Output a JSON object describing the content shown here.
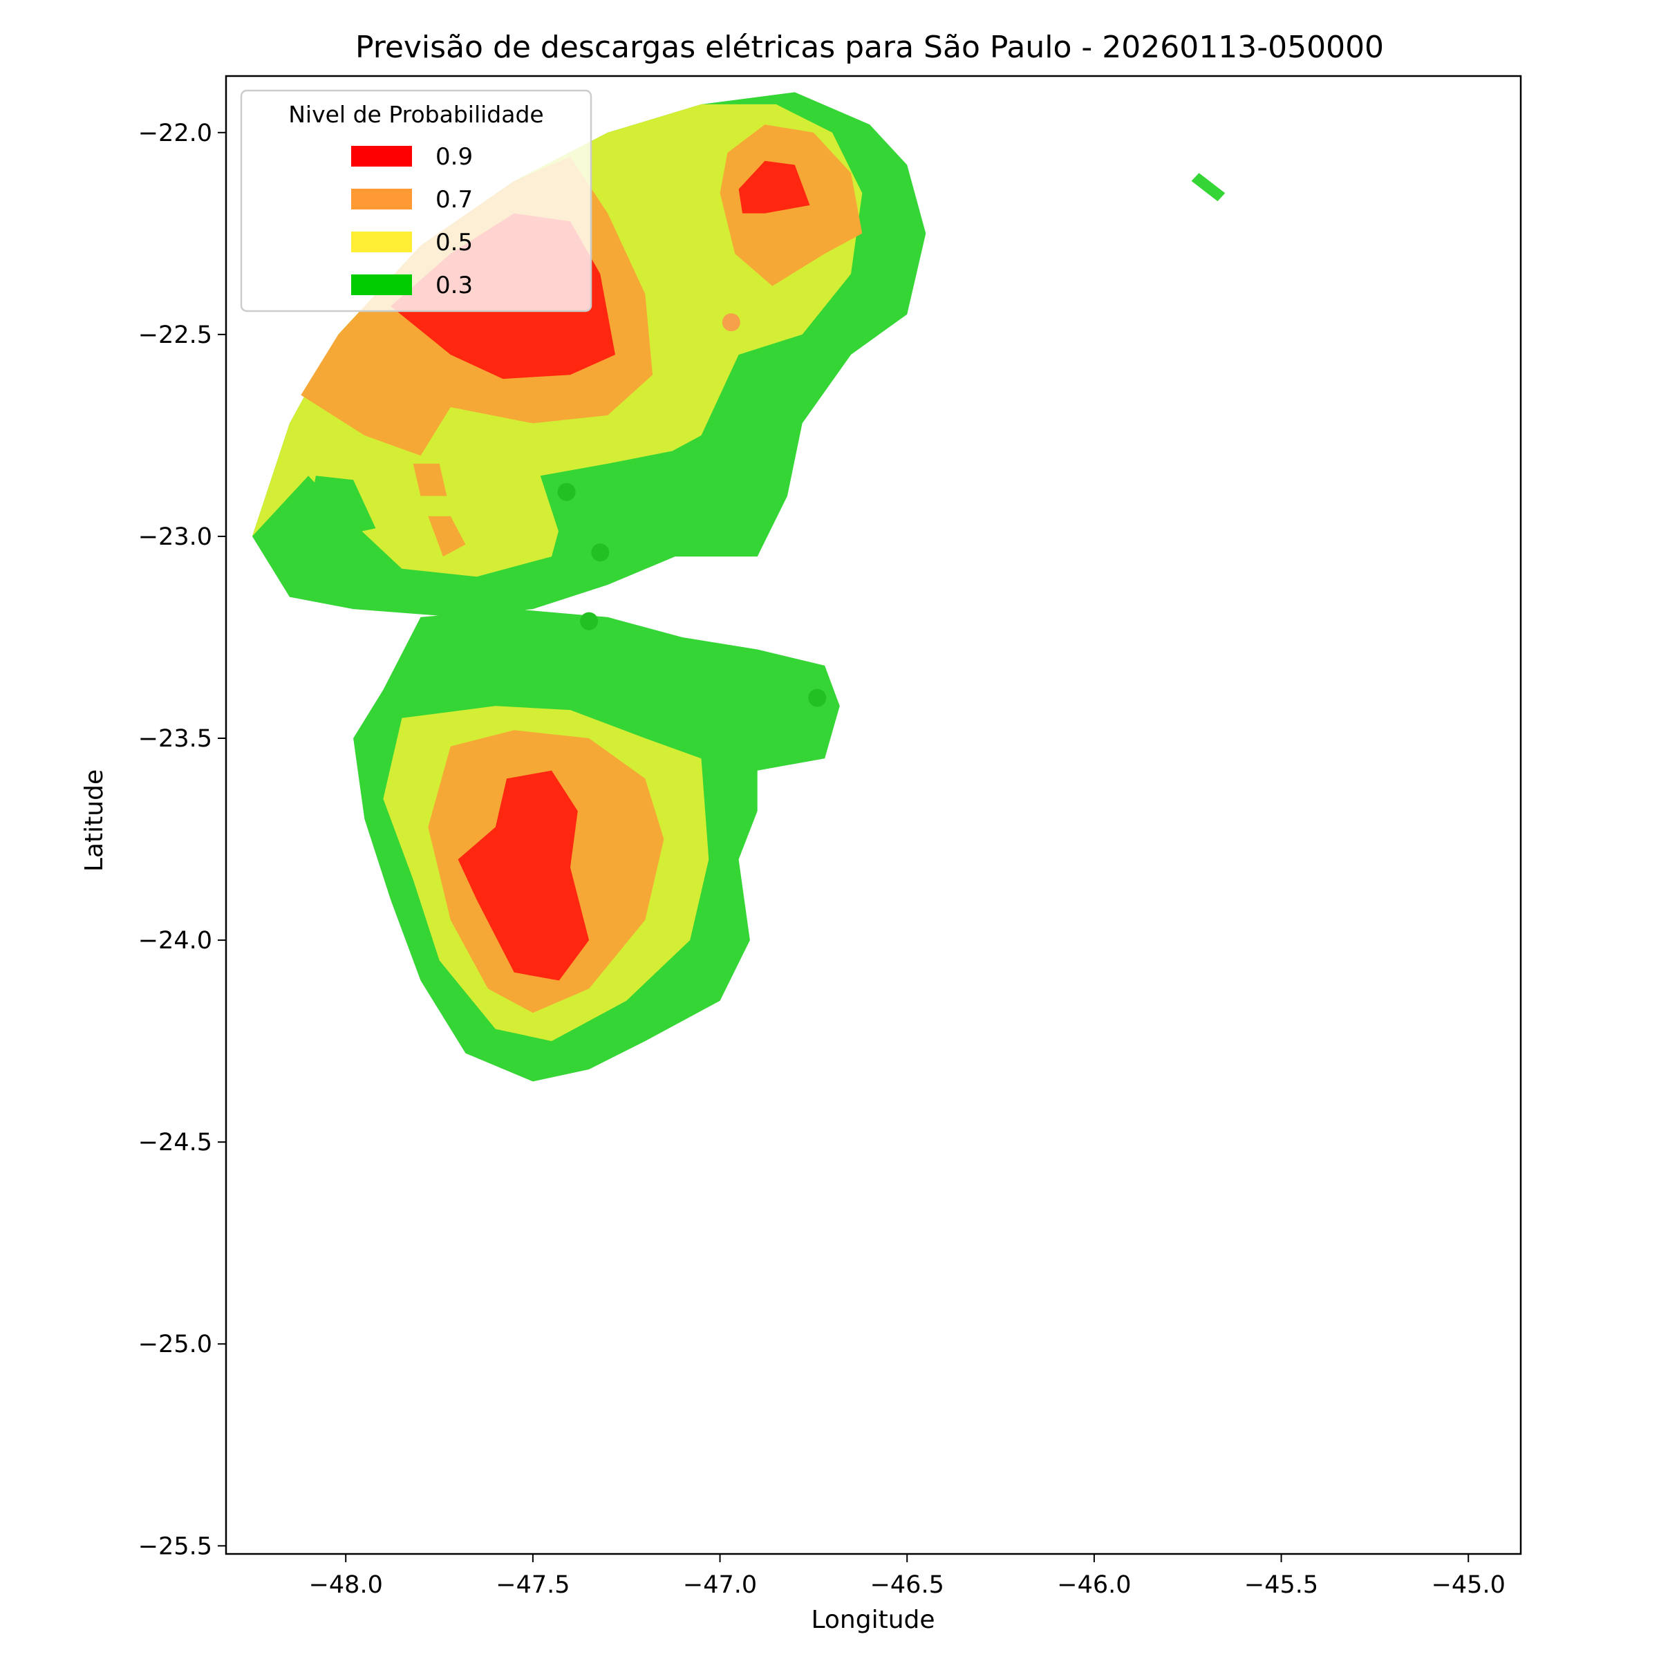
{
  "figure": {
    "title": "Previsão de descargas elétricas para São Paulo - 20260113-050000",
    "xlabel": "Longitude",
    "ylabel": "Latitude"
  },
  "axes": {
    "xlim": [
      -48.32,
      -44.86
    ],
    "ylim": [
      -25.52,
      -21.86
    ],
    "xticks": [
      -48.0,
      -47.5,
      -47.0,
      -46.5,
      -46.0,
      -45.5,
      -45.0
    ],
    "xtick_labels": [
      "−48.0",
      "−47.5",
      "−47.0",
      "−46.5",
      "−46.0",
      "−45.5",
      "−45.0"
    ],
    "yticks": [
      -22.0,
      -22.5,
      -23.0,
      -23.5,
      -24.0,
      -24.5,
      -25.0,
      -25.5
    ],
    "ytick_labels": [
      "−22.0",
      "−22.5",
      "−23.0",
      "−23.5",
      "−24.0",
      "−24.5",
      "−25.0",
      "−25.5"
    ]
  },
  "legend": {
    "title": "Nivel de Probabilidade",
    "position": "upper-left",
    "entries": [
      {
        "label": "0.9",
        "color": "#ff0000"
      },
      {
        "label": "0.7",
        "color": "#ff9933"
      },
      {
        "label": "0.5",
        "color": "#ffee33"
      },
      {
        "label": "0.3",
        "color": "#00cc00"
      }
    ]
  },
  "map_data": {
    "colors": {
      "0.3": "#36d536",
      "0.5": "#d4ee36",
      "0.7": "#f6a836",
      "0.9": "#ff2710",
      "marker_green": "#22c022",
      "marker_orange": "#f6a04a"
    },
    "regions": [
      {
        "name": "north-cell-03",
        "level": "0.3",
        "points": [
          [
            -48.25,
            -23.0
          ],
          [
            -48.15,
            -22.72
          ],
          [
            -48.02,
            -22.5
          ],
          [
            -47.8,
            -22.28
          ],
          [
            -47.55,
            -22.12
          ],
          [
            -47.3,
            -22.0
          ],
          [
            -47.05,
            -21.93
          ],
          [
            -46.8,
            -21.9
          ],
          [
            -46.6,
            -21.98
          ],
          [
            -46.5,
            -22.08
          ],
          [
            -46.45,
            -22.25
          ],
          [
            -46.5,
            -22.45
          ],
          [
            -46.65,
            -22.55
          ],
          [
            -46.78,
            -22.72
          ],
          [
            -46.82,
            -22.9
          ],
          [
            -46.9,
            -23.05
          ],
          [
            -47.12,
            -23.05
          ],
          [
            -47.3,
            -23.12
          ],
          [
            -47.5,
            -23.18
          ],
          [
            -47.7,
            -23.2
          ],
          [
            -47.98,
            -23.18
          ],
          [
            -48.15,
            -23.15
          ]
        ]
      },
      {
        "name": "north-cell-05",
        "level": "0.5",
        "points": [
          [
            -48.25,
            -23.0
          ],
          [
            -48.15,
            -22.72
          ],
          [
            -48.02,
            -22.5
          ],
          [
            -47.8,
            -22.28
          ],
          [
            -47.55,
            -22.12
          ],
          [
            -47.3,
            -22.0
          ],
          [
            -47.05,
            -21.93
          ],
          [
            -46.85,
            -21.93
          ],
          [
            -46.7,
            -22.0
          ],
          [
            -46.62,
            -22.15
          ],
          [
            -46.65,
            -22.35
          ],
          [
            -46.78,
            -22.5
          ],
          [
            -46.95,
            -22.55
          ],
          [
            -47.05,
            -22.75
          ],
          [
            -47.25,
            -22.85
          ],
          [
            -47.4,
            -22.88
          ],
          [
            -47.45,
            -23.05
          ],
          [
            -47.65,
            -23.1
          ],
          [
            -47.85,
            -23.08
          ],
          [
            -48.0,
            -22.95
          ],
          [
            -48.1,
            -22.85
          ]
        ]
      },
      {
        "name": "north-cell-05-gap-a",
        "level": "0.3",
        "points": [
          [
            -48.08,
            -22.85
          ],
          [
            -47.98,
            -22.86
          ],
          [
            -47.92,
            -22.98
          ],
          [
            -48.02,
            -23.0
          ],
          [
            -48.1,
            -22.95
          ]
        ]
      },
      {
        "name": "north-cell-05-gap-b",
        "level": "0.3",
        "points": [
          [
            -47.48,
            -22.85
          ],
          [
            -47.3,
            -22.82
          ],
          [
            -47.08,
            -22.78
          ],
          [
            -47.0,
            -22.9
          ],
          [
            -47.2,
            -23.05
          ],
          [
            -47.42,
            -23.02
          ]
        ]
      },
      {
        "name": "north-cell-07",
        "level": "0.7",
        "points": [
          [
            -48.12,
            -22.65
          ],
          [
            -48.02,
            -22.5
          ],
          [
            -47.8,
            -22.28
          ],
          [
            -47.55,
            -22.12
          ],
          [
            -47.4,
            -22.06
          ],
          [
            -47.3,
            -22.2
          ],
          [
            -47.2,
            -22.4
          ],
          [
            -47.18,
            -22.6
          ],
          [
            -47.3,
            -22.7
          ],
          [
            -47.5,
            -22.72
          ],
          [
            -47.72,
            -22.68
          ],
          [
            -47.8,
            -22.8
          ],
          [
            -47.95,
            -22.75
          ]
        ]
      },
      {
        "name": "north-cell-07-fleck-a",
        "level": "0.7",
        "points": [
          [
            -47.82,
            -22.82
          ],
          [
            -47.75,
            -22.82
          ],
          [
            -47.73,
            -22.9
          ],
          [
            -47.8,
            -22.9
          ]
        ]
      },
      {
        "name": "north-cell-07-fleck-b",
        "level": "0.7",
        "points": [
          [
            -47.78,
            -22.95
          ],
          [
            -47.72,
            -22.95
          ],
          [
            -47.68,
            -23.02
          ],
          [
            -47.74,
            -23.05
          ]
        ]
      },
      {
        "name": "north-cell-09",
        "level": "0.9",
        "points": [
          [
            -47.88,
            -22.43
          ],
          [
            -47.72,
            -22.3
          ],
          [
            -47.55,
            -22.2
          ],
          [
            -47.4,
            -22.22
          ],
          [
            -47.32,
            -22.35
          ],
          [
            -47.28,
            -22.55
          ],
          [
            -47.4,
            -22.6
          ],
          [
            -47.58,
            -22.61
          ],
          [
            -47.72,
            -22.55
          ]
        ]
      },
      {
        "name": "northeast-cell-07",
        "level": "0.7",
        "points": [
          [
            -46.98,
            -22.05
          ],
          [
            -46.88,
            -21.98
          ],
          [
            -46.75,
            -22.0
          ],
          [
            -46.65,
            -22.1
          ],
          [
            -46.62,
            -22.25
          ],
          [
            -46.72,
            -22.3
          ],
          [
            -46.86,
            -22.38
          ],
          [
            -46.96,
            -22.3
          ],
          [
            -47.0,
            -22.15
          ]
        ]
      },
      {
        "name": "northeast-cell-09",
        "level": "0.9",
        "points": [
          [
            -46.95,
            -22.14
          ],
          [
            -46.88,
            -22.07
          ],
          [
            -46.8,
            -22.08
          ],
          [
            -46.76,
            -22.18
          ],
          [
            -46.88,
            -22.2
          ],
          [
            -46.94,
            -22.2
          ]
        ]
      },
      {
        "name": "south-cell-03",
        "level": "0.3",
        "points": [
          [
            -47.8,
            -23.2
          ],
          [
            -47.55,
            -23.18
          ],
          [
            -47.3,
            -23.2
          ],
          [
            -47.1,
            -23.25
          ],
          [
            -46.9,
            -23.28
          ],
          [
            -46.72,
            -23.32
          ],
          [
            -46.68,
            -23.42
          ],
          [
            -46.72,
            -23.55
          ],
          [
            -46.9,
            -23.58
          ],
          [
            -46.9,
            -23.68
          ],
          [
            -46.95,
            -23.8
          ],
          [
            -46.92,
            -24.0
          ],
          [
            -47.0,
            -24.15
          ],
          [
            -47.2,
            -24.25
          ],
          [
            -47.35,
            -24.32
          ],
          [
            -47.5,
            -24.35
          ],
          [
            -47.68,
            -24.28
          ],
          [
            -47.8,
            -24.1
          ],
          [
            -47.88,
            -23.9
          ],
          [
            -47.95,
            -23.7
          ],
          [
            -47.98,
            -23.5
          ],
          [
            -47.9,
            -23.38
          ]
        ]
      },
      {
        "name": "south-cell-05",
        "level": "0.5",
        "points": [
          [
            -47.85,
            -23.45
          ],
          [
            -47.6,
            -23.42
          ],
          [
            -47.4,
            -23.43
          ],
          [
            -47.2,
            -23.5
          ],
          [
            -47.05,
            -23.55
          ],
          [
            -47.03,
            -23.8
          ],
          [
            -47.08,
            -24.0
          ],
          [
            -47.25,
            -24.15
          ],
          [
            -47.45,
            -24.25
          ],
          [
            -47.6,
            -24.22
          ],
          [
            -47.75,
            -24.05
          ],
          [
            -47.82,
            -23.85
          ],
          [
            -47.9,
            -23.65
          ]
        ]
      },
      {
        "name": "south-cell-07",
        "level": "0.7",
        "points": [
          [
            -47.72,
            -23.52
          ],
          [
            -47.55,
            -23.48
          ],
          [
            -47.35,
            -23.5
          ],
          [
            -47.2,
            -23.6
          ],
          [
            -47.15,
            -23.75
          ],
          [
            -47.2,
            -23.95
          ],
          [
            -47.35,
            -24.12
          ],
          [
            -47.5,
            -24.18
          ],
          [
            -47.62,
            -24.12
          ],
          [
            -47.72,
            -23.95
          ],
          [
            -47.78,
            -23.72
          ]
        ]
      },
      {
        "name": "south-cell-09",
        "level": "0.9",
        "points": [
          [
            -47.57,
            -23.6
          ],
          [
            -47.45,
            -23.58
          ],
          [
            -47.38,
            -23.68
          ],
          [
            -47.4,
            -23.82
          ],
          [
            -47.35,
            -24.0
          ],
          [
            -47.43,
            -24.1
          ],
          [
            -47.55,
            -24.08
          ],
          [
            -47.65,
            -23.9
          ],
          [
            -47.7,
            -23.8
          ],
          [
            -47.6,
            -23.72
          ]
        ]
      },
      {
        "name": "east-fleck",
        "level": "0.3",
        "points": [
          [
            -45.72,
            -22.1
          ],
          [
            -45.65,
            -22.15
          ],
          [
            -45.67,
            -22.17
          ],
          [
            -45.74,
            -22.12
          ]
        ]
      }
    ],
    "markers": [
      {
        "name": "marker-1",
        "lon": -46.97,
        "lat": -22.47,
        "color": "marker_orange"
      },
      {
        "name": "marker-2",
        "lon": -47.41,
        "lat": -22.89,
        "color": "marker_green"
      },
      {
        "name": "marker-3",
        "lon": -47.32,
        "lat": -23.04,
        "color": "marker_green"
      },
      {
        "name": "marker-4",
        "lon": -47.35,
        "lat": -23.21,
        "color": "marker_green"
      },
      {
        "name": "marker-5",
        "lon": -46.74,
        "lat": -23.4,
        "color": "marker_green"
      }
    ]
  }
}
